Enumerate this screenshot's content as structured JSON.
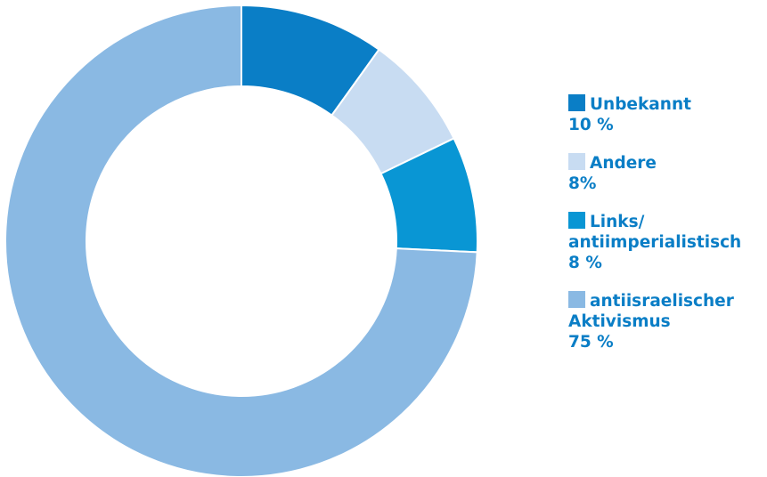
{
  "chart_data": {
    "type": "pie",
    "donut": true,
    "categories": [
      "Unbekannt",
      "Andere",
      "Links/\nantiimperialistisch",
      "antiisraelischer\nAktivismus"
    ],
    "values": [
      10,
      8,
      8,
      75
    ],
    "value_labels": [
      "10 %",
      "8%",
      "8 %",
      "75 %"
    ],
    "colors": [
      "#0a7ec6",
      "#c8dcf2",
      "#0996d4",
      "#8ab9e3"
    ],
    "start_angle_deg": 0,
    "direction": "clockwise",
    "legend_position": "right"
  },
  "legend": {
    "text_color": "#0a7ec6",
    "items": [
      {
        "label": "Unbekannt",
        "value": "10 %",
        "color": "#0a7ec6"
      },
      {
        "label": "Andere",
        "value": "8%",
        "color": "#c8dcf2"
      },
      {
        "label": "Links/\nantiimperialistisch",
        "value": "8 %",
        "color": "#0996d4"
      },
      {
        "label": "antiisraelischer\nAktivismus",
        "value": "75 %",
        "color": "#8ab9e3"
      }
    ]
  }
}
